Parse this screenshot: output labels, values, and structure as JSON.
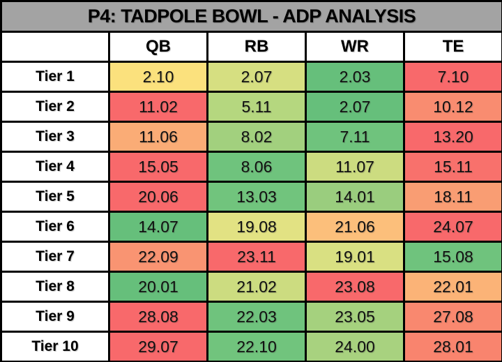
{
  "title": "P4: TADPOLE BOWL - ADP ANALYSIS",
  "columns": [
    "QB",
    "RB",
    "WR",
    "TE"
  ],
  "rows": [
    {
      "label": "Tier 1",
      "values": [
        "2.10",
        "2.07",
        "2.03",
        "7.10"
      ],
      "colors": [
        "#FBE17D",
        "#D6DF81",
        "#66BF7B",
        "#F8696B"
      ]
    },
    {
      "label": "Tier 2",
      "values": [
        "11.02",
        "5.11",
        "2.07",
        "10.12"
      ],
      "colors": [
        "#F8696B",
        "#B5D77F",
        "#66BF7B",
        "#F98C70"
      ]
    },
    {
      "label": "Tier 3",
      "values": [
        "11.06",
        "8.02",
        "7.11",
        "13.20"
      ],
      "colors": [
        "#FAAC76",
        "#A2D07E",
        "#6FC37D",
        "#F8696B"
      ]
    },
    {
      "label": "Tier 4",
      "values": [
        "15.05",
        "8.06",
        "11.07",
        "15.11"
      ],
      "colors": [
        "#F8696B",
        "#6FC37D",
        "#CCDC80",
        "#F8716C"
      ]
    },
    {
      "label": "Tier 5",
      "values": [
        "20.06",
        "13.03",
        "14.01",
        "18.11"
      ],
      "colors": [
        "#F8696B",
        "#71C47D",
        "#9ACD7E",
        "#F99D73"
      ]
    },
    {
      "label": "Tier 6",
      "values": [
        "14.07",
        "19.08",
        "21.06",
        "24.07"
      ],
      "colors": [
        "#66BF7B",
        "#E2E283",
        "#FCBF7B",
        "#F8696B"
      ]
    },
    {
      "label": "Tier 7",
      "values": [
        "22.09",
        "23.11",
        "19.01",
        "15.08"
      ],
      "colors": [
        "#F99472",
        "#F8696B",
        "#D9E082",
        "#6FC37D"
      ]
    },
    {
      "label": "Tier 8",
      "values": [
        "20.01",
        "21.02",
        "23.08",
        "22.01"
      ],
      "colors": [
        "#66BF7B",
        "#CCDC80",
        "#F8696B",
        "#FBB377"
      ]
    },
    {
      "label": "Tier 9",
      "values": [
        "28.08",
        "22.03",
        "23.05",
        "27.08"
      ],
      "colors": [
        "#F8696B",
        "#6FC37D",
        "#A5D17E",
        "#F9886F"
      ]
    },
    {
      "label": "Tier 10",
      "values": [
        "29.07",
        "22.10",
        "24.00",
        "28.01"
      ],
      "colors": [
        "#F8696B",
        "#71C47D",
        "#A8D27F",
        "#F9846E"
      ]
    }
  ],
  "ui_colors": {
    "title_bg": "#A3A3A3",
    "border": "#000000",
    "header_bg": "#FFFFFF",
    "text": "#000000",
    "scale_green": "#63BE7B",
    "scale_yellow": "#FFE984",
    "scale_red": "#F8696B"
  },
  "chart_data": {
    "type": "heatmap",
    "title": "P4: TADPOLE BOWL - ADP ANALYSIS",
    "columns": [
      "QB",
      "RB",
      "WR",
      "TE"
    ],
    "row_labels": [
      "Tier 1",
      "Tier 2",
      "Tier 3",
      "Tier 4",
      "Tier 5",
      "Tier 6",
      "Tier 7",
      "Tier 8",
      "Tier 9",
      "Tier 10"
    ],
    "values": [
      [
        2.1,
        2.07,
        2.03,
        7.1
      ],
      [
        11.02,
        5.11,
        2.07,
        10.12
      ],
      [
        11.06,
        8.02,
        7.11,
        13.2
      ],
      [
        15.05,
        8.06,
        11.07,
        15.11
      ],
      [
        20.06,
        13.03,
        14.01,
        18.11
      ],
      [
        14.07,
        19.08,
        21.06,
        24.07
      ],
      [
        22.09,
        23.11,
        19.01,
        15.08
      ],
      [
        20.01,
        21.02,
        23.08,
        22.01
      ],
      [
        28.08,
        22.03,
        23.05,
        27.08
      ],
      [
        29.07,
        22.1,
        24.0,
        28.01
      ]
    ],
    "color_scale": "green (low/best) -> yellow -> red (high/worst), per-row",
    "legend": "none",
    "grid": "black cell borders"
  }
}
